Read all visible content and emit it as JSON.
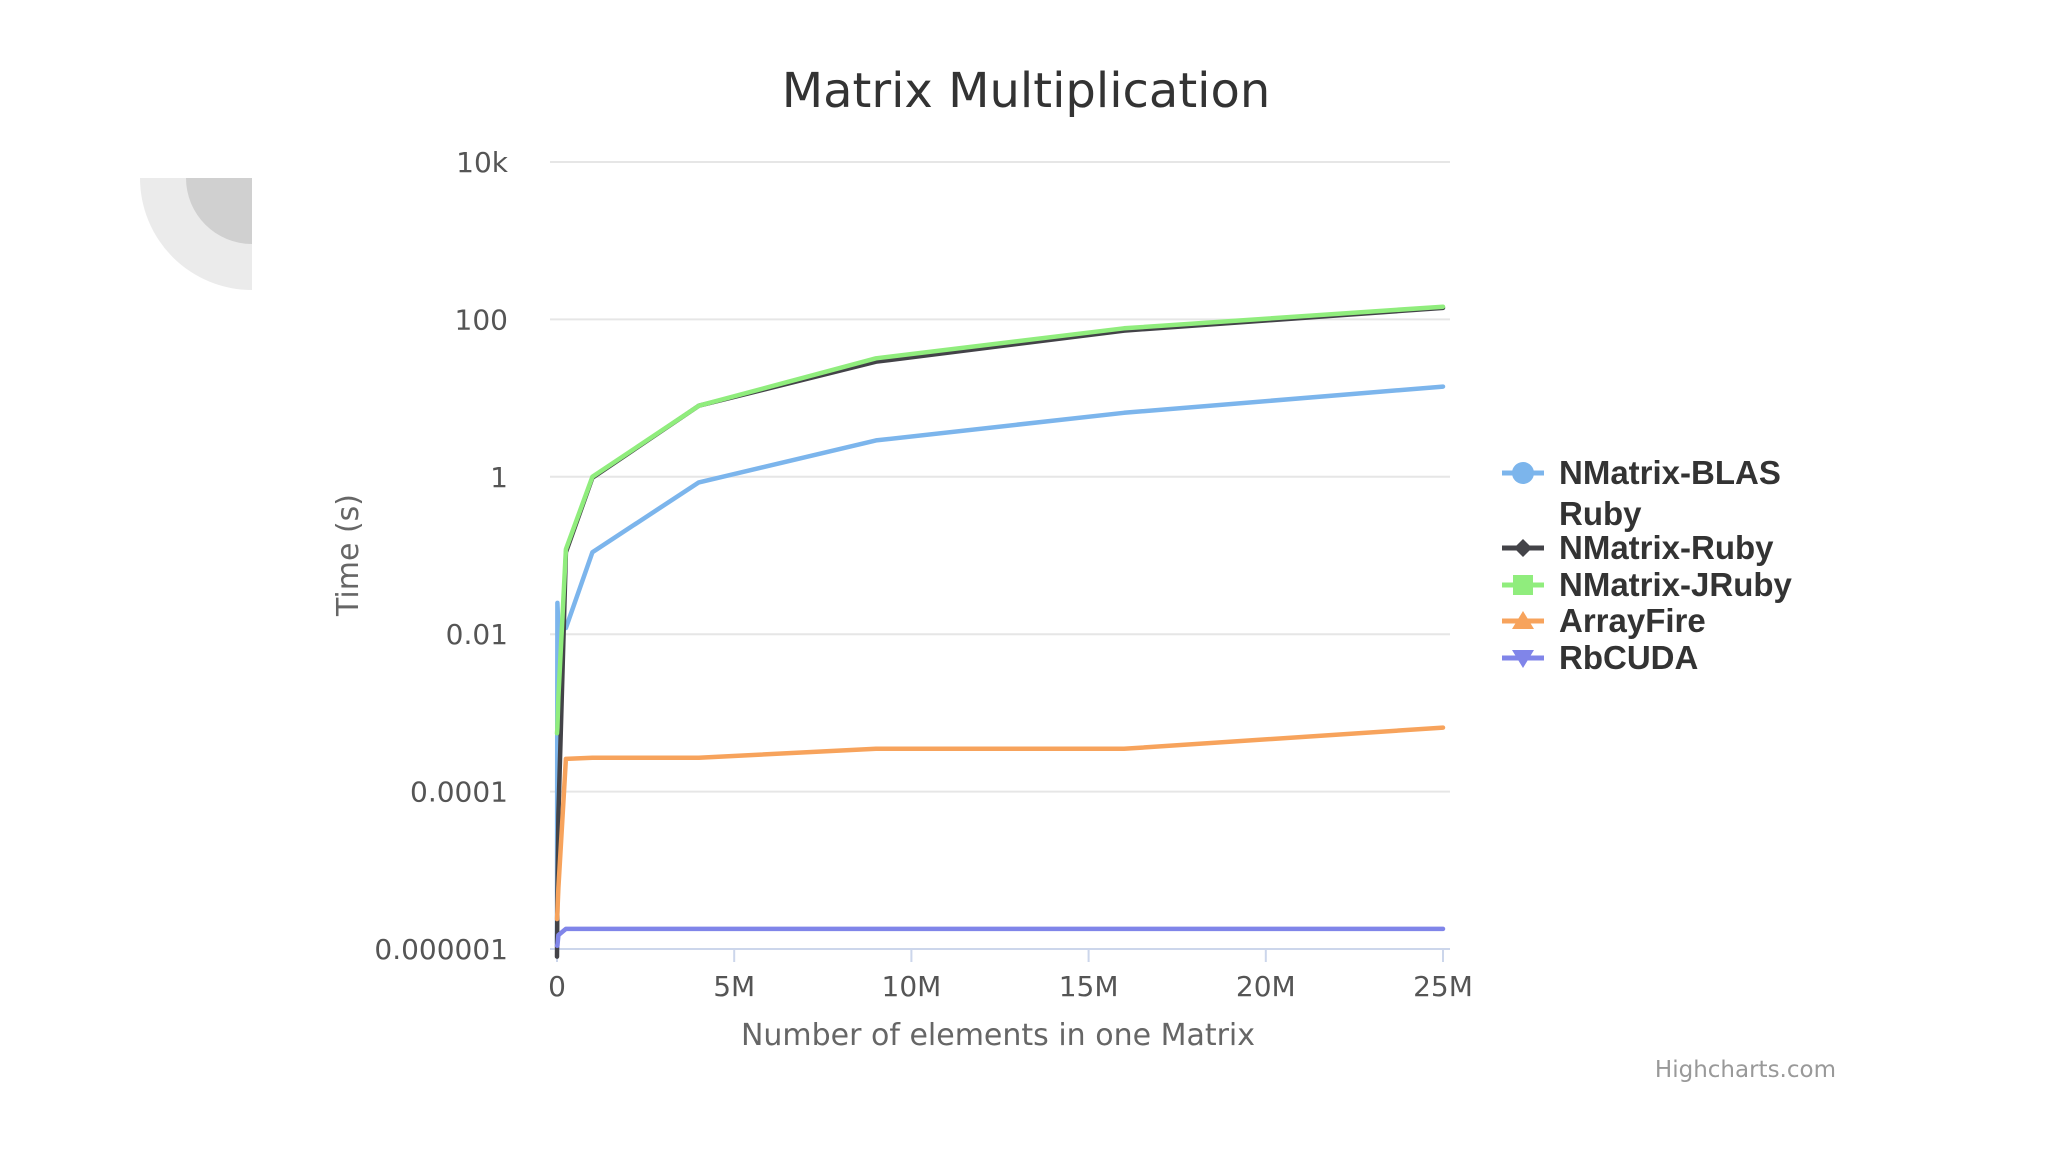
{
  "chart_data": {
    "type": "line",
    "title": "Matrix Multiplication",
    "xlabel": "Number of elements in one Matrix",
    "ylabel": "Time (s)",
    "x_scale": "linear",
    "y_scale": "log",
    "xlim": [
      0,
      25000000
    ],
    "ylim": [
      1e-06,
      10000
    ],
    "x_ticks": [
      {
        "value": 0,
        "label": "0"
      },
      {
        "value": 5000000,
        "label": "5M"
      },
      {
        "value": 10000000,
        "label": "10M"
      },
      {
        "value": 15000000,
        "label": "15M"
      },
      {
        "value": 20000000,
        "label": "20M"
      },
      {
        "value": 25000000,
        "label": "25M"
      }
    ],
    "y_ticks": [
      {
        "value": 1e-06,
        "label": "0.000001"
      },
      {
        "value": 0.0001,
        "label": "0.0001"
      },
      {
        "value": 0.01,
        "label": "0.01"
      },
      {
        "value": 1,
        "label": "1"
      },
      {
        "value": 100,
        "label": "100"
      },
      {
        "value": 10000,
        "label": "10k"
      }
    ],
    "grid": true,
    "legend_position": "right",
    "credits": "Highcharts.com",
    "series": [
      {
        "name": "NMatrix-BLAS Ruby",
        "name_lines": [
          "NMatrix-BLAS",
          "Ruby"
        ],
        "color": "#7cb5ec",
        "marker": "circle",
        "x": [
          4,
          10000,
          40000,
          250000,
          1000000,
          4000000,
          9000000,
          16000000,
          25000000
        ],
        "y": [
          1.2e-06,
          0.025,
          0.012,
          0.012,
          0.11,
          0.85,
          2.9,
          6.5,
          14
        ]
      },
      {
        "name": "NMatrix-Ruby",
        "color": "#434348",
        "marker": "diamond",
        "x": [
          4,
          10000,
          40000,
          250000,
          1000000,
          4000000,
          9000000,
          16000000,
          25000000
        ],
        "y": [
          8e-07,
          4.5e-06,
          5e-05,
          0.11,
          0.97,
          8,
          29,
          72,
          140
        ]
      },
      {
        "name": "NMatrix-JRuby",
        "color": "#90ed7d",
        "marker": "square",
        "x": [
          4,
          10000,
          40000,
          250000,
          1000000,
          4000000,
          9000000,
          16000000,
          25000000
        ],
        "y": [
          0.00055,
          0.00065,
          0.0016,
          0.12,
          1.0,
          8,
          32,
          77,
          145
        ]
      },
      {
        "name": "ArrayFire",
        "color": "#f7a35c",
        "marker": "triangle",
        "x": [
          4,
          10000,
          40000,
          250000,
          1000000,
          4000000,
          9000000,
          16000000,
          25000000
        ],
        "y": [
          2.4e-06,
          3e-06,
          6e-06,
          0.00026,
          0.00027,
          0.00027,
          0.00035,
          0.00035,
          0.00065
        ]
      },
      {
        "name": "RbCUDA",
        "color": "#8085e9",
        "marker": "triangle-down",
        "x": [
          4,
          10000,
          40000,
          250000,
          1000000,
          4000000,
          9000000,
          16000000,
          25000000
        ],
        "y": [
          1.1e-06,
          1.1e-06,
          1.5e-06,
          1.8e-06,
          1.8e-06,
          1.8e-06,
          1.8e-06,
          1.8e-06,
          1.8e-06
        ]
      }
    ]
  }
}
